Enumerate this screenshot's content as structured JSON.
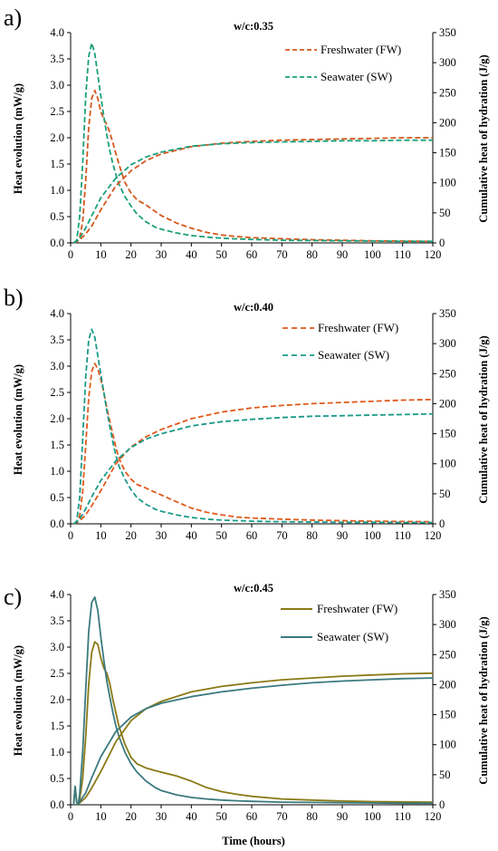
{
  "chart_data": [
    {
      "type": "line",
      "panel_label": "a)",
      "title": "w/c:0.35",
      "xlabel": "",
      "ylabel": "Heat evolution (mW/g)",
      "y2label": "Cumulative heat of hydration (J/g)",
      "xlim": [
        0,
        120
      ],
      "ylim": [
        0,
        4.0
      ],
      "y2lim": [
        0,
        350
      ],
      "xticks": [
        "0",
        "10",
        "20",
        "30",
        "40",
        "50",
        "60",
        "70",
        "80",
        "90",
        "100",
        "110",
        "120"
      ],
      "yticks": [
        "0.0",
        "0.5",
        "1.0",
        "1.5",
        "2.0",
        "2.5",
        "3.0",
        "3.5",
        "4.0"
      ],
      "y2ticks": [
        "0",
        "50",
        "100",
        "150",
        "200",
        "250",
        "300",
        "350"
      ],
      "line_style": "dashed",
      "legend_position": "top-right",
      "series": [
        {
          "name": "Freshwater (FW)",
          "color": "#d4571e",
          "role": "legend",
          "x": [
            1,
            2,
            3,
            4,
            5,
            6,
            7,
            8,
            9,
            10,
            11,
            12,
            13,
            14,
            15,
            16,
            18,
            20,
            22,
            25,
            28,
            30,
            35,
            40,
            45,
            50,
            55,
            60,
            70,
            80,
            90,
            100,
            110,
            120
          ],
          "y": [
            0.0,
            0.02,
            0.1,
            0.4,
            1.2,
            2.2,
            2.75,
            2.9,
            2.75,
            2.5,
            2.35,
            2.25,
            2.1,
            1.9,
            1.7,
            1.5,
            1.15,
            0.95,
            0.82,
            0.72,
            0.6,
            0.52,
            0.38,
            0.28,
            0.2,
            0.15,
            0.12,
            0.1,
            0.08,
            0.06,
            0.05,
            0.04,
            0.035,
            0.03
          ]
        },
        {
          "name": "Seawater (SW)",
          "color": "#1aa07a",
          "role": "legend",
          "x": [
            1,
            2,
            3,
            4,
            5,
            6,
            7,
            8,
            9,
            10,
            11,
            12,
            13,
            14,
            15,
            16,
            18,
            20,
            22,
            25,
            28,
            30,
            35,
            40,
            45,
            50,
            55,
            60,
            70,
            80,
            90,
            100,
            110,
            120
          ],
          "y": [
            0.0,
            0.05,
            0.5,
            1.5,
            2.8,
            3.55,
            3.8,
            3.6,
            3.2,
            2.8,
            2.4,
            2.05,
            1.75,
            1.5,
            1.3,
            1.12,
            0.88,
            0.7,
            0.55,
            0.4,
            0.3,
            0.26,
            0.19,
            0.14,
            0.11,
            0.09,
            0.075,
            0.065,
            0.05,
            0.045,
            0.04,
            0.035,
            0.03,
            0.03
          ]
        },
        {
          "name": "",
          "color": "#d4571e",
          "axis": "y2",
          "x": [
            1,
            2,
            3,
            5,
            7,
            10,
            15,
            20,
            25,
            30,
            40,
            50,
            60,
            70,
            80,
            90,
            100,
            110,
            120
          ],
          "y": [
            0,
            2,
            5,
            15,
            28,
            55,
            95,
            120,
            137,
            148,
            160,
            166,
            169,
            171,
            172,
            173,
            174,
            175,
            175
          ]
        },
        {
          "name": "",
          "color": "#1aa07a",
          "axis": "y2",
          "x": [
            1,
            2,
            3,
            5,
            7,
            10,
            15,
            20,
            25,
            30,
            40,
            50,
            60,
            70,
            80,
            90,
            100,
            110,
            120
          ],
          "y": [
            0,
            3,
            8,
            25,
            45,
            75,
            108,
            130,
            143,
            151,
            161,
            165,
            167,
            168,
            169,
            170,
            170,
            171,
            171
          ]
        }
      ]
    },
    {
      "type": "line",
      "panel_label": "b)",
      "title": "w/c:0.40",
      "xlabel": "",
      "ylabel": "Heat evolution (mW/g)",
      "y2label": "Cumulative heat of hydration (J/g)",
      "xlim": [
        0,
        120
      ],
      "ylim": [
        0,
        4.0
      ],
      "y2lim": [
        0,
        350
      ],
      "xticks": [
        "0",
        "10",
        "20",
        "30",
        "40",
        "50",
        "60",
        "70",
        "80",
        "90",
        "100",
        "110",
        "120"
      ],
      "yticks": [
        "0.0",
        "0.5",
        "1.0",
        "1.5",
        "2.0",
        "2.5",
        "3.0",
        "3.5",
        "4.0"
      ],
      "y2ticks": [
        "0",
        "50",
        "100",
        "150",
        "200",
        "250",
        "300",
        "350"
      ],
      "line_style": "dashed",
      "legend_position": "top-right",
      "series": [
        {
          "name": "Freshwater (FW)",
          "color": "#e05a1c",
          "role": "legend",
          "x": [
            1,
            2,
            3,
            4,
            5,
            6,
            7,
            8,
            9,
            10,
            11,
            12,
            13,
            14,
            15,
            16,
            18,
            20,
            22,
            25,
            28,
            30,
            35,
            40,
            45,
            50,
            55,
            60,
            70,
            80,
            90,
            100,
            110,
            120
          ],
          "y": [
            0.0,
            0.03,
            0.15,
            0.6,
            1.5,
            2.4,
            2.9,
            3.05,
            2.95,
            2.75,
            2.5,
            2.2,
            1.95,
            1.7,
            1.45,
            1.25,
            1.0,
            0.85,
            0.75,
            0.68,
            0.6,
            0.55,
            0.42,
            0.3,
            0.22,
            0.17,
            0.13,
            0.11,
            0.09,
            0.07,
            0.06,
            0.05,
            0.045,
            0.04
          ]
        },
        {
          "name": "Seawater (SW)",
          "color": "#1a9a8a",
          "role": "legend",
          "x": [
            1,
            2,
            3,
            4,
            5,
            6,
            7,
            8,
            9,
            10,
            11,
            12,
            13,
            14,
            15,
            16,
            18,
            20,
            22,
            25,
            28,
            30,
            35,
            40,
            45,
            50,
            55,
            60,
            70,
            80,
            90,
            100,
            110,
            120
          ],
          "y": [
            0.0,
            0.05,
            0.5,
            1.6,
            2.8,
            3.5,
            3.7,
            3.55,
            3.2,
            2.85,
            2.5,
            2.15,
            1.85,
            1.55,
            1.3,
            1.1,
            0.85,
            0.65,
            0.5,
            0.37,
            0.28,
            0.24,
            0.17,
            0.12,
            0.09,
            0.07,
            0.06,
            0.05,
            0.04,
            0.035,
            0.03,
            0.03,
            0.025,
            0.025
          ]
        },
        {
          "name": "",
          "color": "#e05a1c",
          "axis": "y2",
          "x": [
            1,
            2,
            3,
            5,
            7,
            10,
            15,
            20,
            25,
            30,
            40,
            50,
            60,
            70,
            80,
            90,
            100,
            110,
            120
          ],
          "y": [
            0,
            2,
            5,
            15,
            30,
            55,
            100,
            128,
            145,
            157,
            175,
            186,
            193,
            197,
            200,
            202,
            204,
            206,
            207
          ]
        },
        {
          "name": "",
          "color": "#1a9a8a",
          "axis": "y2",
          "x": [
            1,
            2,
            3,
            5,
            7,
            10,
            15,
            20,
            25,
            30,
            40,
            50,
            60,
            70,
            80,
            90,
            100,
            110,
            120
          ],
          "y": [
            0,
            3,
            8,
            25,
            45,
            72,
            105,
            127,
            141,
            150,
            163,
            170,
            174,
            177,
            179,
            180,
            181,
            182,
            183
          ]
        }
      ]
    },
    {
      "type": "line",
      "panel_label": "c)",
      "title": "w/c:0.45",
      "xlabel": "Time (hours)",
      "ylabel": "Heat evolution (mW/g)",
      "y2label": "Cumulative heat of hydration (J/g)",
      "xlim": [
        0,
        120
      ],
      "ylim": [
        0,
        4.0
      ],
      "y2lim": [
        0,
        350
      ],
      "xticks": [
        "0",
        "10",
        "20",
        "30",
        "40",
        "50",
        "60",
        "70",
        "80",
        "90",
        "100",
        "110",
        "120"
      ],
      "yticks": [
        "0.0",
        "0.5",
        "1.0",
        "1.5",
        "2.0",
        "2.5",
        "3.0",
        "3.5",
        "4.0"
      ],
      "y2ticks": [
        "0",
        "50",
        "100",
        "150",
        "200",
        "250",
        "300",
        "350"
      ],
      "line_style": "solid",
      "legend_position": "top-right",
      "series": [
        {
          "name": "Freshwater (FW)",
          "color": "#8a7a16",
          "role": "legend",
          "x": [
            1,
            1.5,
            2,
            2.5,
            3,
            4,
            5,
            6,
            7,
            8,
            9,
            10,
            11,
            12,
            13,
            14,
            15,
            16,
            18,
            20,
            22,
            25,
            28,
            30,
            35,
            40,
            45,
            50,
            55,
            60,
            70,
            80,
            90,
            100,
            110,
            120
          ],
          "y": [
            0.0,
            0.35,
            0.05,
            0.0,
            0.1,
            0.5,
            1.3,
            2.3,
            2.9,
            3.1,
            3.05,
            2.8,
            2.6,
            2.5,
            2.3,
            2.0,
            1.75,
            1.5,
            1.15,
            0.9,
            0.78,
            0.7,
            0.65,
            0.62,
            0.55,
            0.45,
            0.33,
            0.25,
            0.2,
            0.16,
            0.11,
            0.09,
            0.07,
            0.06,
            0.055,
            0.05
          ]
        },
        {
          "name": "Seawater (SW)",
          "color": "#3b7a7e",
          "role": "legend",
          "x": [
            1,
            1.5,
            2,
            2.5,
            3,
            4,
            5,
            6,
            7,
            8,
            9,
            10,
            11,
            12,
            13,
            14,
            15,
            16,
            18,
            20,
            22,
            25,
            28,
            30,
            35,
            40,
            45,
            50,
            55,
            60,
            70,
            80,
            90,
            100,
            110,
            120
          ],
          "y": [
            0.0,
            0.35,
            0.05,
            0.0,
            0.2,
            1.0,
            2.2,
            3.3,
            3.85,
            3.95,
            3.7,
            3.2,
            2.75,
            2.35,
            2.05,
            1.75,
            1.5,
            1.3,
            1.0,
            0.78,
            0.62,
            0.45,
            0.33,
            0.27,
            0.19,
            0.14,
            0.11,
            0.09,
            0.075,
            0.065,
            0.05,
            0.045,
            0.04,
            0.035,
            0.03,
            0.03
          ]
        },
        {
          "name": "",
          "color": "#8a7a16",
          "axis": "y2",
          "x": [
            2,
            3,
            5,
            7,
            10,
            15,
            20,
            25,
            30,
            40,
            50,
            60,
            70,
            80,
            90,
            100,
            110,
            120
          ],
          "y": [
            0,
            3,
            12,
            28,
            55,
            105,
            140,
            160,
            172,
            188,
            197,
            203,
            208,
            211,
            214,
            216,
            218,
            219
          ]
        },
        {
          "name": "",
          "color": "#3b7a7e",
          "axis": "y2",
          "x": [
            2,
            3,
            5,
            7,
            10,
            15,
            20,
            25,
            30,
            40,
            50,
            60,
            70,
            80,
            90,
            100,
            110,
            120
          ],
          "y": [
            0,
            5,
            20,
            45,
            80,
            122,
            146,
            160,
            169,
            180,
            188,
            194,
            199,
            203,
            206,
            208,
            210,
            211
          ]
        }
      ]
    }
  ]
}
